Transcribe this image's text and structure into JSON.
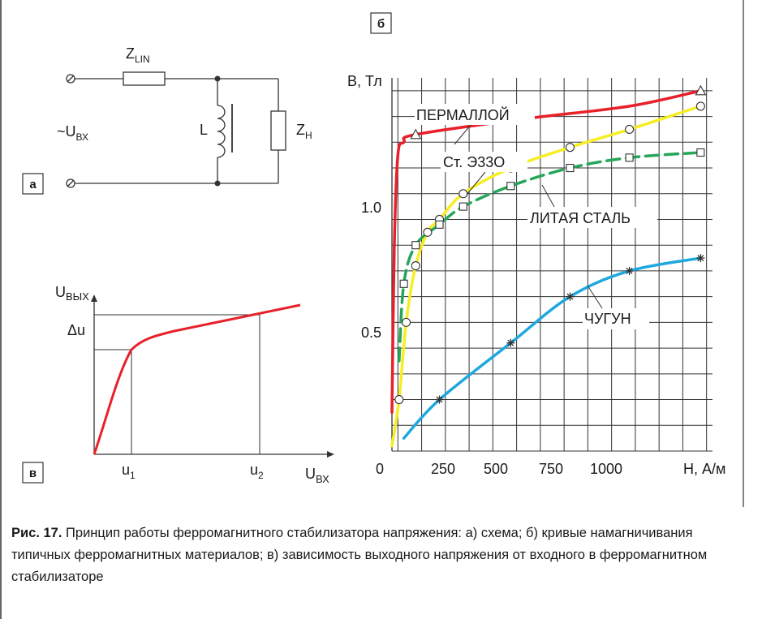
{
  "panel_labels": {
    "a": "а",
    "b": "б",
    "v": "в"
  },
  "circuit": {
    "z_line": "Z",
    "z_line_sub": "LIN",
    "u_in": "~U",
    "u_in_sub": "ВХ",
    "inductor": "L",
    "z_load": "Z",
    "z_load_sub": "Н"
  },
  "stabilizer_plot": {
    "y_label": "U",
    "y_label_sub": "ВЫХ",
    "x_label": "U",
    "x_label_sub": "ВХ",
    "delta_u": "Δu",
    "u1": "u",
    "u1_sub": "1",
    "u2": "u",
    "u2_sub": "2"
  },
  "magnetization": {
    "y_label": "В, Тл",
    "x_label": "Н, А/м",
    "y_ticks": [
      "0.5",
      "1.0"
    ],
    "x_ticks": [
      "0",
      "250",
      "500",
      "750",
      "1000"
    ],
    "materials": {
      "permalloy": "ПЕРМАЛЛОЙ",
      "steel": "Ст. Э33О",
      "cast_steel": "ЛИТАЯ СТАЛЬ",
      "cast_iron": "ЧУГУН"
    }
  },
  "colors": {
    "permalloy": "#e8202a",
    "steel": "#f6ee22",
    "cast_steel": "#25a65a",
    "cast_iron": "#1ea8e0",
    "stabilizer_curve": "#e8202a"
  },
  "chart_data": {
    "type": "line",
    "xlabel": "Н, А/м",
    "ylabel": "В, Тл",
    "xlim": [
      0,
      1350
    ],
    "ylim": [
      0,
      1.45
    ],
    "series": [
      {
        "name": "ПЕРМАЛЛОЙ",
        "x": [
          0,
          10,
          25,
          50,
          100,
          550,
          1000,
          1300
        ],
        "y": [
          0.15,
          0.8,
          1.15,
          1.2,
          1.23,
          1.29,
          1.34,
          1.4
        ]
      },
      {
        "name": "Ст. Э33О",
        "x": [
          0,
          30,
          60,
          100,
          150,
          200,
          300,
          500,
          750,
          1000,
          1300
        ],
        "y": [
          0.02,
          0.2,
          0.5,
          0.72,
          0.85,
          0.9,
          1.0,
          1.1,
          1.18,
          1.25,
          1.34
        ]
      },
      {
        "name": "ЛИТАЯ СТАЛЬ",
        "x": [
          30,
          50,
          100,
          200,
          300,
          500,
          750,
          1000,
          1300
        ],
        "y": [
          0.35,
          0.65,
          0.8,
          0.88,
          0.95,
          1.03,
          1.1,
          1.14,
          1.16
        ]
      },
      {
        "name": "ЧУГУН",
        "x": [
          50,
          200,
          500,
          750,
          1000,
          1300
        ],
        "y": [
          0.05,
          0.2,
          0.42,
          0.6,
          0.7,
          0.75
        ]
      }
    ]
  },
  "caption": {
    "label": "Рис. 17.",
    "text": "Принцип работы ферромагнитного стабилизатора напряжения: а) схема; б) кривые намагничивания типичных ферромагнитных материалов; в) зависимость выходного напряжения от входного в ферромагнитном стабилизаторе"
  }
}
